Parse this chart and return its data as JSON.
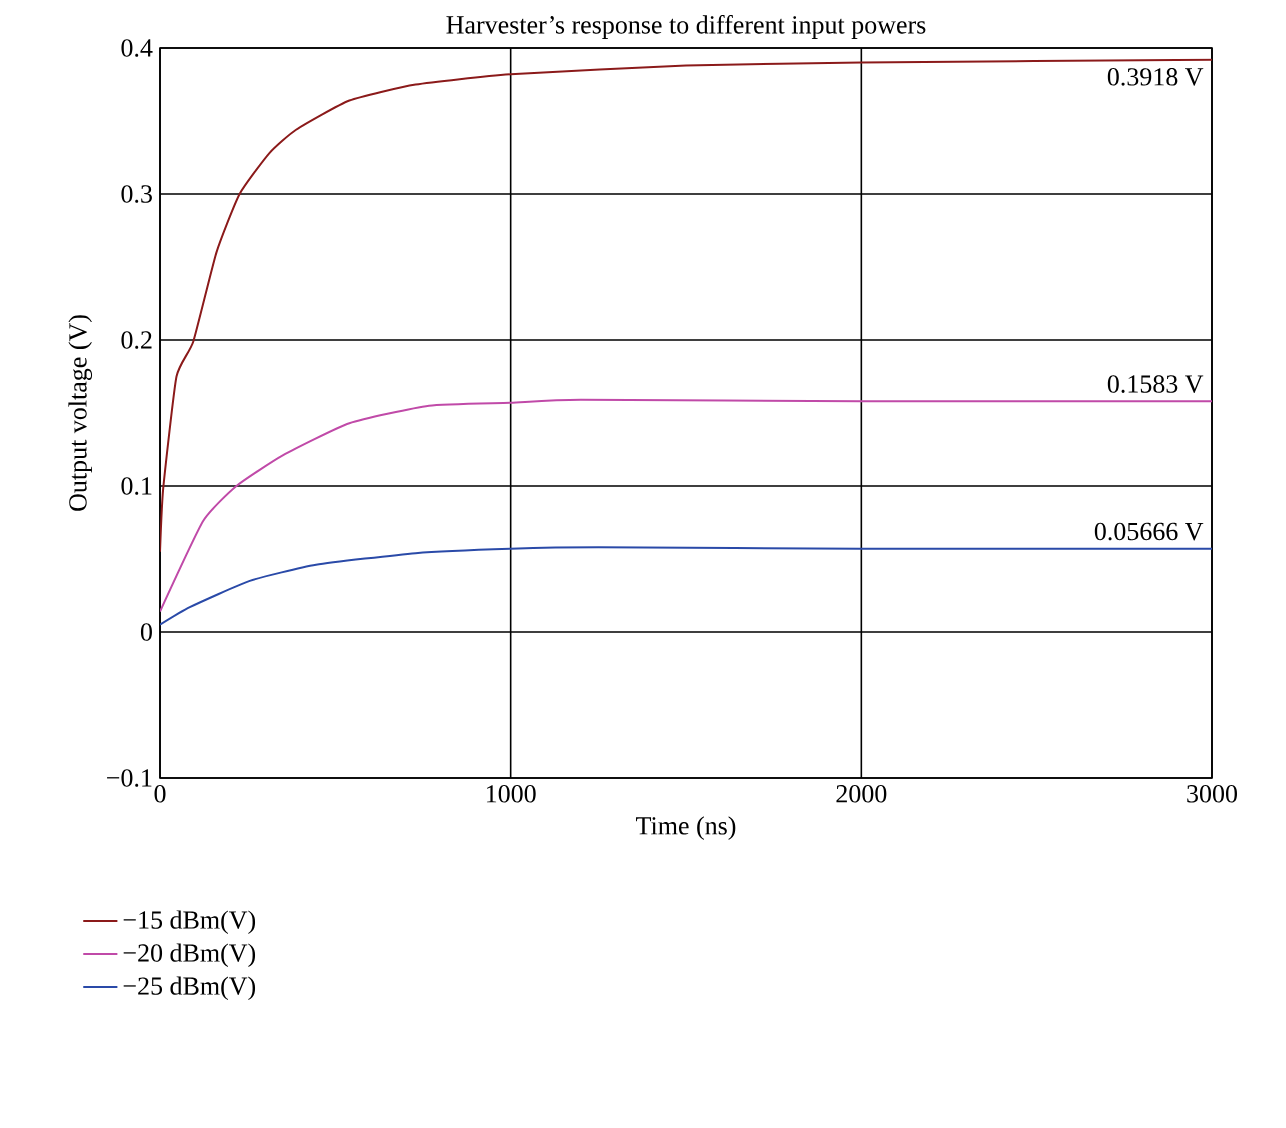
{
  "chart_data": {
    "type": "line",
    "title": "Harvester’s response to different input powers",
    "xlabel": "Time (ns)",
    "ylabel": "Output voltage (V)",
    "xlim": [
      0,
      3000
    ],
    "ylim": [
      -0.1,
      0.4
    ],
    "xticks": [
      0,
      1000,
      2000,
      3000
    ],
    "yticks": [
      {
        "value": -0.1,
        "label": "−0.1"
      },
      0,
      0.1,
      0.2,
      0.3,
      0.4
    ],
    "grid": true,
    "legend": "bottom left",
    "line_style": "solid",
    "marker": "none",
    "x": [
      0,
      9,
      47,
      95,
      161,
      227,
      312,
      388,
      540,
      729,
      1000,
      1500,
      2000,
      3000
    ],
    "series": [
      {
        "name": "−15 dBm(V)",
        "color": "#8b1a1a",
        "values": [
          0.055,
          0.098,
          0.175,
          0.199,
          0.26,
          0.3,
          0.328,
          0.344,
          0.364,
          0.375,
          0.382,
          0.388,
          0.39,
          0.392
        ]
      },
      {
        "name": "−20 dBm(V)",
        "color": "#c04aa8",
        "x": [
          0,
          123,
          218,
          350,
          540,
          767,
          1000,
          1200,
          2000,
          3000
        ],
        "values": [
          0.014,
          0.076,
          0.1,
          0.121,
          0.143,
          0.155,
          0.157,
          0.159,
          0.158,
          0.158
        ]
      },
      {
        "name": "−25 dBm(V)",
        "color": "#2a4aa8",
        "x": [
          0,
          85,
          256,
          445,
          729,
          1000,
          1250,
          2000,
          3000
        ],
        "values": [
          0.005,
          0.017,
          0.035,
          0.046,
          0.054,
          0.057,
          0.058,
          0.057,
          0.057
        ]
      }
    ],
    "annotations": [
      "0.3918 V",
      "0.1583 V",
      "0.05666 V"
    ]
  }
}
